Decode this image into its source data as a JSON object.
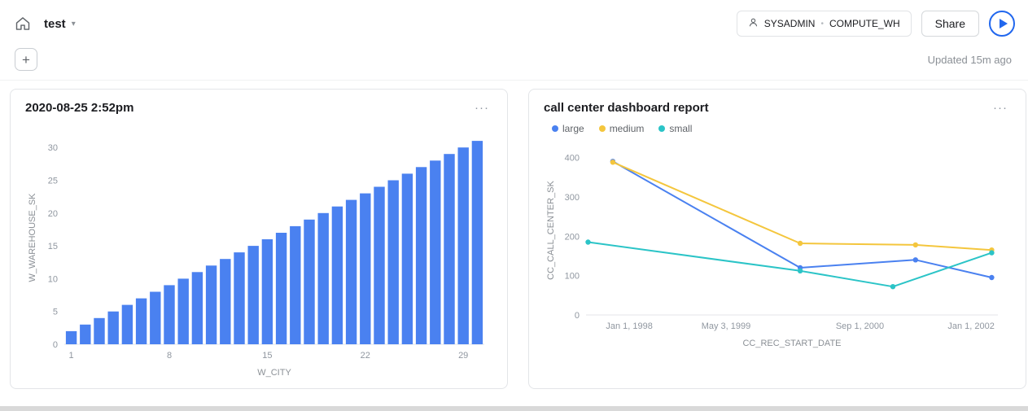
{
  "header": {
    "title": "test",
    "context": {
      "role": "SYSADMIN",
      "warehouse": "COMPUTE_WH"
    },
    "share_label": "Share",
    "updated_text": "Updated 15m ago"
  },
  "icons": {
    "caret": "▾",
    "tile_menu": "···",
    "plus": "+",
    "separator_dot": "•"
  },
  "colors": {
    "accent_blue": "#2167ee",
    "bar_blue": "#4a81f0",
    "series_yellow": "#f4c63d",
    "series_teal": "#2bc4c7",
    "axis_text": "#9097a0"
  },
  "chart_data": [
    {
      "type": "bar",
      "title": "2020-08-25 2:52pm",
      "xlabel": "W_CITY",
      "ylabel": "W_WAREHOUSE_SK",
      "categories": [
        1,
        2,
        3,
        4,
        5,
        6,
        7,
        8,
        9,
        10,
        11,
        12,
        13,
        14,
        15,
        16,
        17,
        18,
        19,
        20,
        21,
        22,
        23,
        24,
        25,
        26,
        27,
        28,
        29,
        30
      ],
      "values": [
        2,
        3,
        4,
        5,
        6,
        7,
        8,
        9,
        10,
        11,
        12,
        13,
        14,
        15,
        16,
        17,
        18,
        19,
        20,
        21,
        22,
        23,
        24,
        25,
        26,
        27,
        28,
        29,
        30,
        31
      ],
      "xticks": [
        1,
        8,
        15,
        22,
        29
      ],
      "yticks": [
        0,
        5,
        10,
        15,
        20,
        25,
        30
      ],
      "ylim": [
        0,
        32.5
      ],
      "grid": false,
      "color": "#4a81f0"
    },
    {
      "type": "line",
      "title": "call center dashboard report",
      "xlabel": "CC_REC_START_DATE",
      "ylabel": "CC_CALL_CENTER_SK",
      "yticks": [
        0,
        100,
        200,
        300,
        400
      ],
      "ylim": [
        0,
        430
      ],
      "grid": false,
      "legend_position": "top-left",
      "xticks": [
        {
          "label": "Jan 1, 1998",
          "f": 0.105
        },
        {
          "label": "May 3, 1999",
          "f": 0.34
        },
        {
          "label": "Sep 1, 2000",
          "f": 0.665
        },
        {
          "label": "Jan 1, 2002",
          "f": 0.935
        }
      ],
      "series": [
        {
          "name": "large",
          "color": "#4a81f0",
          "points": [
            {
              "f": 0.065,
              "v": 390
            },
            {
              "f": 0.52,
              "v": 120
            },
            {
              "f": 0.8,
              "v": 140
            },
            {
              "f": 0.985,
              "v": 95
            }
          ]
        },
        {
          "name": "medium",
          "color": "#f4c63d",
          "points": [
            {
              "f": 0.065,
              "v": 388
            },
            {
              "f": 0.52,
              "v": 182
            },
            {
              "f": 0.8,
              "v": 178
            },
            {
              "f": 0.985,
              "v": 165
            }
          ]
        },
        {
          "name": "small",
          "color": "#2bc4c7",
          "points": [
            {
              "f": 0.005,
              "v": 185
            },
            {
              "f": 0.52,
              "v": 112
            },
            {
              "f": 0.745,
              "v": 72
            },
            {
              "f": 0.985,
              "v": 158
            }
          ]
        }
      ]
    }
  ]
}
